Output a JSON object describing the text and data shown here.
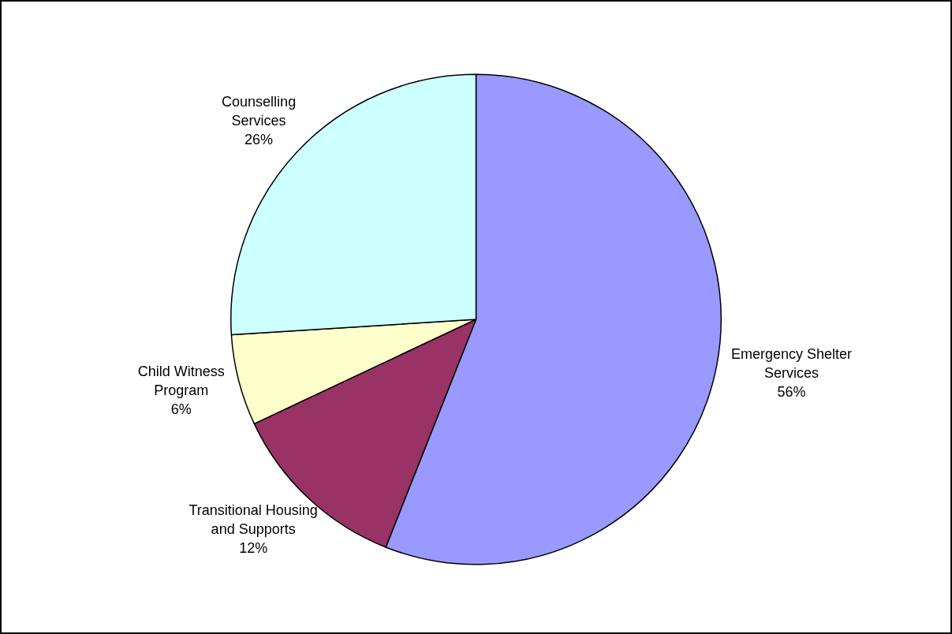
{
  "chart_data": {
    "type": "pie",
    "categories": [
      "Emergency Shelter Services",
      "Transitional Housing and Supports",
      "Child Witness Program",
      "Counselling Services"
    ],
    "values": [
      56,
      12,
      6,
      26
    ],
    "colors": [
      "#9999ff",
      "#993366",
      "#ffffcc",
      "#ccffff"
    ],
    "value_labels": [
      "56%",
      "12%",
      "6%",
      "26%"
    ],
    "legend": false
  }
}
